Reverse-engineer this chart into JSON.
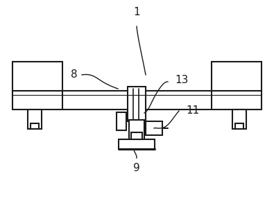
{
  "bg_color": "#ffffff",
  "line_color": "#1a1a1a",
  "lw": 1.5,
  "fig_w": 3.95,
  "fig_h": 3.03,
  "dpi": 100
}
